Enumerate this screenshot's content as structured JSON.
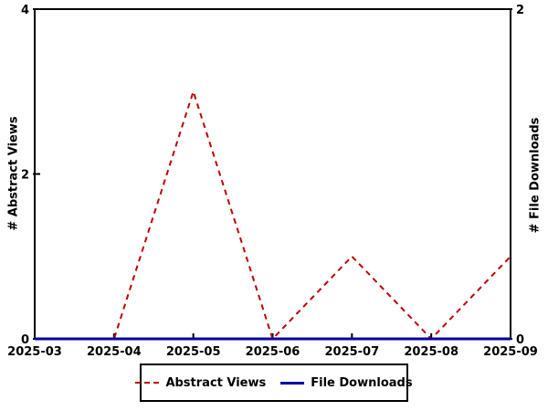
{
  "chart_data": {
    "type": "line",
    "categories": [
      "2025-03",
      "2025-04",
      "2025-05",
      "2025-06",
      "2025-07",
      "2025-08",
      "2025-09"
    ],
    "series": [
      {
        "name": "Abstract Views",
        "axis": "left",
        "values": [
          0,
          0,
          3,
          0,
          1,
          0,
          1
        ],
        "color": "#c00000",
        "line_style": "dashed",
        "line_width": 2
      },
      {
        "name": "File Downloads",
        "axis": "right",
        "values": [
          0,
          0,
          0,
          0,
          0,
          0,
          0
        ],
        "color": "#0000aa",
        "line_style": "solid",
        "line_width": 3
      }
    ],
    "left_axis": {
      "label": "# Abstract Views",
      "range": [
        0,
        4
      ],
      "ticks": [
        0,
        2,
        4
      ]
    },
    "right_axis": {
      "label": "# File Downloads",
      "range": [
        0,
        2
      ],
      "ticks": [
        0,
        2
      ]
    },
    "legend": {
      "position": "bottom",
      "border": true
    },
    "title": "",
    "grid": false,
    "background_color": "#ffffff",
    "axis_color": "#000000",
    "text_color": "#000000"
  }
}
